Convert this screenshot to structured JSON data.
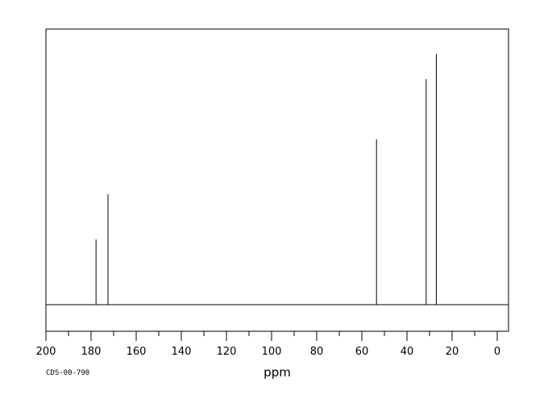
{
  "chart_data": {
    "type": "line",
    "title": "",
    "xlabel": "ppm",
    "ylabel": "",
    "xlim": [
      200,
      -5
    ],
    "x_reversed": true,
    "grid": false,
    "legend": "none",
    "x_ticks": [
      200,
      180,
      160,
      140,
      120,
      100,
      80,
      60,
      40,
      20,
      0
    ],
    "peaks": [
      {
        "ppm": 177.8,
        "height": 0.26
      },
      {
        "ppm": 172.5,
        "height": 0.44
      },
      {
        "ppm": 53.5,
        "height": 0.66
      },
      {
        "ppm": 31.5,
        "height": 0.9
      },
      {
        "ppm": 27.0,
        "height": 1.0
      }
    ],
    "colors": {
      "line": "#000000"
    }
  },
  "footer": {
    "code": "CDS-00-790"
  }
}
